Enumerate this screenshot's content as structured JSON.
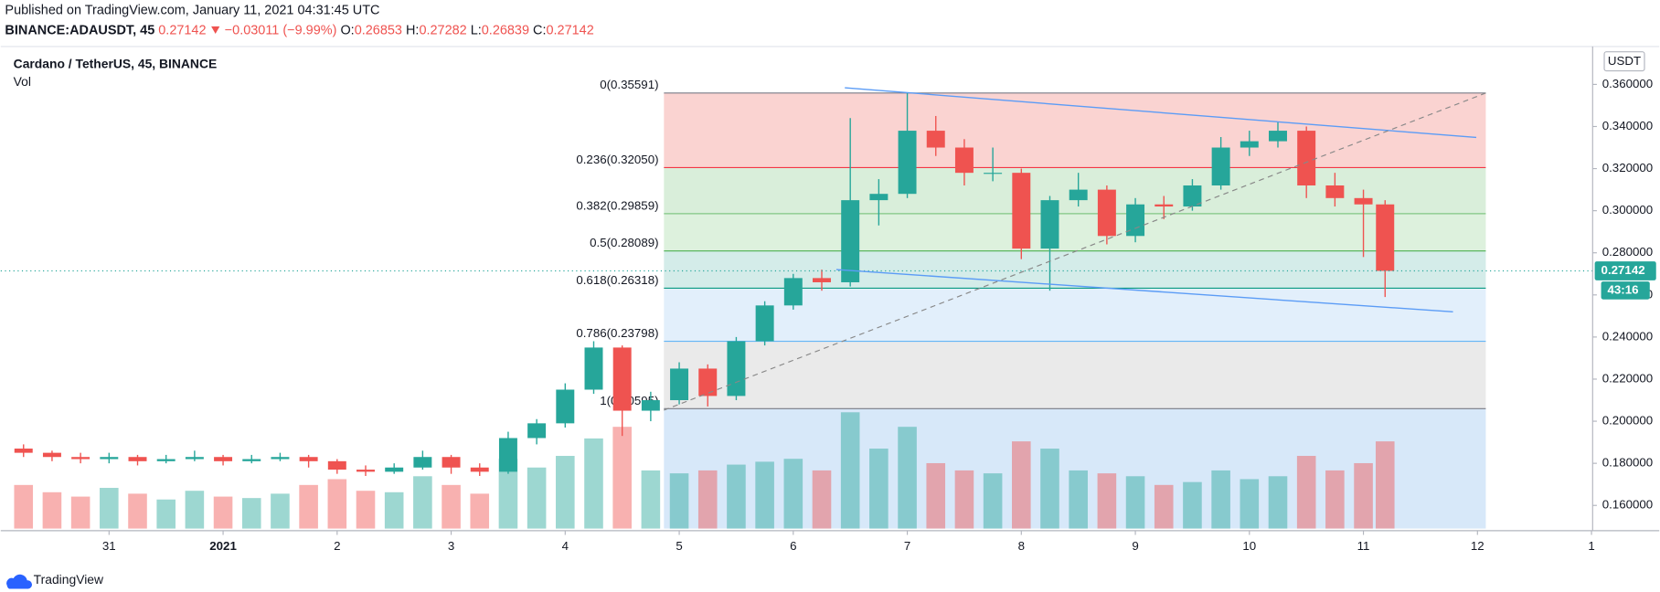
{
  "header": {
    "published": "Published on TradingView.com, January 11, 2021 04:31:45 UTC",
    "symbol": "BINANCE:ADAUSDT, 45",
    "last": "0.27142",
    "change": "−0.03011 (−9.99%)",
    "ohlc": [
      {
        "key": "O:",
        "value": "0.26853"
      },
      {
        "key": "H:",
        "value": "0.27282"
      },
      {
        "key": "L:",
        "value": "0.26839"
      },
      {
        "key": "C:",
        "value": "0.27142"
      }
    ]
  },
  "chart_data": {
    "type": "candlestick",
    "title": "Cardano / TetherUS, 45, BINANCE",
    "subtitle": "Vol",
    "unit": "USDT",
    "up_color": "#26a69a",
    "down_color": "#ef5350",
    "xlim": [
      0.05,
      14.01
    ],
    "xticks": [
      {
        "value": 1,
        "label": "31"
      },
      {
        "value": 2,
        "label": "2021"
      },
      {
        "value": 3,
        "label": "2"
      },
      {
        "value": 4,
        "label": "3"
      },
      {
        "value": 5,
        "label": "4"
      },
      {
        "value": 6,
        "label": "5"
      },
      {
        "value": 7,
        "label": "6"
      },
      {
        "value": 8,
        "label": "7"
      },
      {
        "value": 9,
        "label": "8"
      },
      {
        "value": 10,
        "label": "9"
      },
      {
        "value": 11,
        "label": "10"
      },
      {
        "value": 12,
        "label": "11"
      },
      {
        "value": 13,
        "label": "12"
      },
      {
        "value": 14,
        "label": "1"
      }
    ],
    "ylim": [
      0.149,
      0.378
    ],
    "yticks": [
      {
        "value": 0.16,
        "label": "0.160000"
      },
      {
        "value": 0.18,
        "label": "0.180000"
      },
      {
        "value": 0.2,
        "label": "0.200000"
      },
      {
        "value": 0.22,
        "label": "0.220000"
      },
      {
        "value": 0.24,
        "label": "0.240000"
      },
      {
        "value": 0.26,
        "label": "0.260000"
      },
      {
        "value": 0.28,
        "label": "0.280000"
      },
      {
        "value": 0.3,
        "label": "0.300000"
      },
      {
        "value": 0.32,
        "label": "0.320000"
      },
      {
        "value": 0.34,
        "label": "0.340000"
      },
      {
        "value": 0.36,
        "label": "0.360000"
      }
    ],
    "x": [
      0.25,
      0.5,
      0.75,
      1,
      1.25,
      1.5,
      1.75,
      2,
      2.25,
      2.5,
      2.75,
      3,
      3.25,
      3.5,
      3.75,
      4,
      4.25,
      4.5,
      4.75,
      5,
      5.25,
      5.5,
      5.75,
      6,
      6.25,
      6.5,
      6.75,
      7,
      7.25,
      7.5,
      7.75,
      8,
      8.25,
      8.5,
      8.75,
      9,
      9.25,
      9.5,
      9.75,
      10,
      10.25,
      10.5,
      10.75,
      11,
      11.25,
      11.5,
      11.75,
      12,
      12.19
    ],
    "open": [
      0.187,
      0.185,
      0.183,
      0.182,
      0.183,
      0.181,
      0.182,
      0.183,
      0.181,
      0.182,
      0.183,
      0.181,
      0.177,
      0.176,
      0.178,
      0.183,
      0.178,
      0.176,
      0.192,
      0.199,
      0.215,
      0.235,
      0.205,
      0.21,
      0.225,
      0.212,
      0.238,
      0.255,
      0.268,
      0.266,
      0.305,
      0.308,
      0.338,
      0.33,
      0.318,
      0.318,
      0.282,
      0.305,
      0.31,
      0.288,
      0.303,
      0.302,
      0.312,
      0.33,
      0.333,
      0.338,
      0.312,
      0.306,
      0.303
    ],
    "high": [
      0.189,
      0.186,
      0.185,
      0.185,
      0.184,
      0.184,
      0.186,
      0.184,
      0.184,
      0.185,
      0.184,
      0.182,
      0.179,
      0.18,
      0.186,
      0.184,
      0.18,
      0.195,
      0.201,
      0.218,
      0.238,
      0.236,
      0.214,
      0.228,
      0.227,
      0.24,
      0.257,
      0.27,
      0.272,
      0.344,
      0.315,
      0.356,
      0.345,
      0.334,
      0.33,
      0.32,
      0.307,
      0.318,
      0.312,
      0.306,
      0.307,
      0.315,
      0.335,
      0.338,
      0.342,
      0.34,
      0.318,
      0.31,
      0.305
    ],
    "low": [
      0.183,
      0.181,
      0.18,
      0.18,
      0.179,
      0.18,
      0.181,
      0.179,
      0.18,
      0.181,
      0.178,
      0.175,
      0.174,
      0.175,
      0.177,
      0.175,
      0.174,
      0.175,
      0.189,
      0.197,
      0.213,
      0.193,
      0.2,
      0.208,
      0.207,
      0.21,
      0.236,
      0.253,
      0.262,
      0.264,
      0.293,
      0.306,
      0.326,
      0.312,
      0.314,
      0.277,
      0.262,
      0.302,
      0.284,
      0.285,
      0.296,
      0.3,
      0.31,
      0.326,
      0.33,
      0.306,
      0.302,
      0.278,
      0.259
    ],
    "close": [
      0.185,
      0.183,
      0.182,
      0.183,
      0.181,
      0.182,
      0.183,
      0.181,
      0.182,
      0.183,
      0.181,
      0.177,
      0.176,
      0.178,
      0.183,
      0.178,
      0.176,
      0.192,
      0.199,
      0.215,
      0.235,
      0.205,
      0.21,
      0.225,
      0.212,
      0.238,
      0.255,
      0.268,
      0.266,
      0.305,
      0.308,
      0.338,
      0.33,
      0.318,
      0.318,
      0.282,
      0.305,
      0.31,
      0.288,
      0.303,
      0.302,
      0.312,
      0.33,
      0.333,
      0.338,
      0.312,
      0.306,
      0.303,
      0.27142
    ],
    "volume": [
      30,
      25,
      22,
      28,
      24,
      20,
      26,
      22,
      21,
      24,
      30,
      34,
      26,
      25,
      36,
      30,
      24,
      48,
      42,
      50,
      62,
      70,
      40,
      38,
      40,
      44,
      46,
      48,
      40,
      80,
      55,
      70,
      45,
      40,
      38,
      60,
      55,
      40,
      38,
      36,
      30,
      32,
      40,
      34,
      36,
      50,
      40,
      45,
      60
    ],
    "last_price": 0.27142,
    "countdown": "43:16",
    "fib_levels": [
      {
        "label": "0(0.35591)",
        "value": 0.35591,
        "color": "#787b86",
        "fill": "#f7b6b2"
      },
      {
        "label": "0.236(0.32050)",
        "value": 0.3205,
        "color": "#f23645",
        "fill": "#bfe3c1"
      },
      {
        "label": "0.382(0.29859)",
        "value": 0.29859,
        "color": "#81c784",
        "fill": "#c7e8c7"
      },
      {
        "label": "0.5(0.28089)",
        "value": 0.28089,
        "color": "#4caf50",
        "fill": "#b8e0da"
      },
      {
        "label": "0.618(0.26318)",
        "value": 0.26318,
        "color": "#089981",
        "fill": "#cfe5f8"
      },
      {
        "label": "0.786(0.23798)",
        "value": 0.23798,
        "color": "#64b5f6",
        "fill": "#dcdcdc"
      },
      {
        "label": "1(0.20595)",
        "value": 0.20595,
        "color": "#787b86",
        "fill": "#bcd9f5"
      }
    ]
  }
}
